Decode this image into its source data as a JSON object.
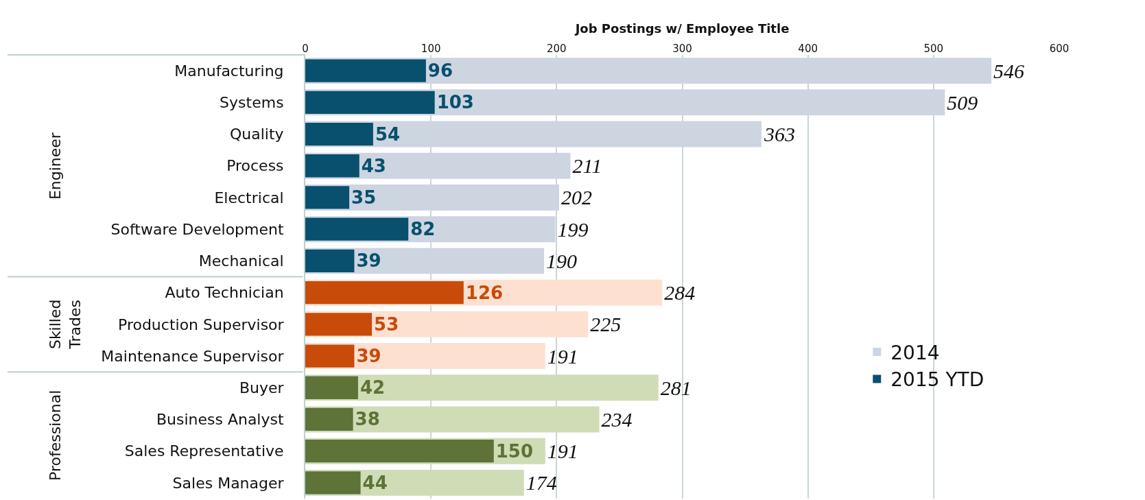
{
  "chart_data": {
    "type": "bar",
    "orientation": "horizontal",
    "xlabel": "Job Postings w/ Employee Title",
    "categories": [
      "Manufacturing",
      "Systems",
      "Quality",
      "Process",
      "Electrical",
      "Software Development",
      "Mechanical",
      "Auto Technician",
      "Production Supervisor",
      "Maintenance Supervisor",
      "Buyer",
      "Business Analyst",
      "Sales Representative",
      "Sales Manager"
    ],
    "series": [
      {
        "name": "2014",
        "color": "#cdd5e1",
        "colors": [
          "#cdd5e1",
          "#cdd5e1",
          "#cdd5e1",
          "#cdd5e1",
          "#cdd5e1",
          "#cdd5e1",
          "#cdd5e1",
          "#fde0d0",
          "#fde0d0",
          "#fde0d0",
          "#cfdcb6",
          "#cfdcb6",
          "#cfdcb6",
          "#cfdcb6"
        ],
        "values": [
          546,
          509,
          363,
          211,
          202,
          199,
          190,
          284,
          225,
          191,
          281,
          234,
          191,
          174
        ]
      },
      {
        "name": "2015 YTD",
        "color": "#08506e",
        "colors": [
          "#08506e",
          "#08506e",
          "#08506e",
          "#08506e",
          "#08506e",
          "#08506e",
          "#08506e",
          "#c84b09",
          "#c84b09",
          "#c84b09",
          "#5d7337",
          "#5d7337",
          "#5d7337",
          "#5d7337"
        ],
        "values": [
          96,
          103,
          54,
          43,
          35,
          82,
          39,
          126,
          53,
          39,
          42,
          38,
          150,
          44
        ]
      }
    ],
    "xlim": [
      0,
      600
    ],
    "xticks": [
      0,
      100,
      200,
      300,
      400,
      500,
      600
    ],
    "grid": "x",
    "legend": "right",
    "data_labels": true,
    "annotations": [
      "Engineer",
      "Skilled Trades",
      "Professional"
    ]
  }
}
